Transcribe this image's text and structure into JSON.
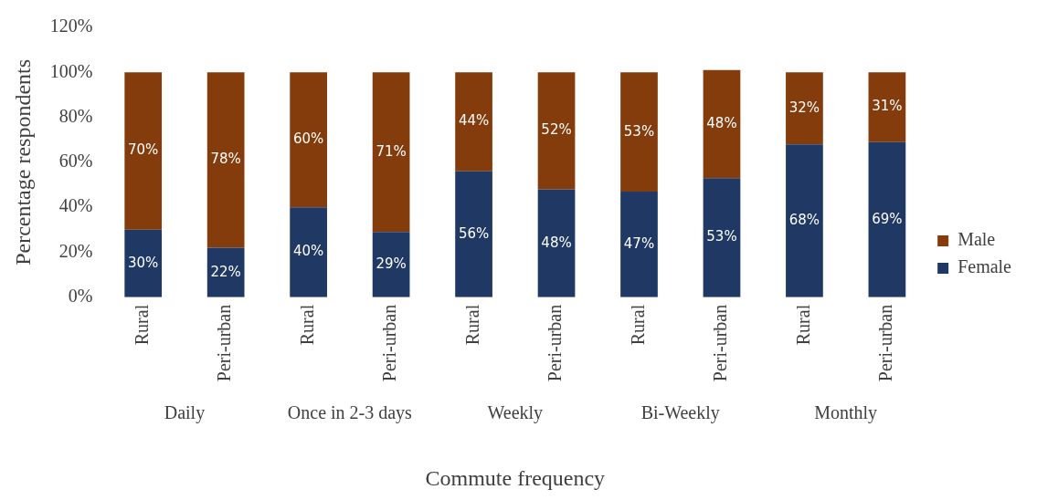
{
  "chart_data": {
    "type": "bar",
    "stacked": true,
    "xlabel": "Commute frequency",
    "ylabel": "Percentage respondents",
    "categories": [
      "Rural",
      "Peri-urban",
      "Rural",
      "Peri-urban",
      "Rural",
      "Peri-urban",
      "Rural",
      "Peri-urban",
      "Rural",
      "Peri-urban"
    ],
    "series": [
      {
        "name": "Female",
        "color": "#1f3864",
        "values": [
          30,
          22,
          40,
          29,
          56,
          48,
          47,
          53,
          68,
          69
        ],
        "value_labels": [
          "30%",
          "22%",
          "40%",
          "29%",
          "56%",
          "48%",
          "47%",
          "53%",
          "68%",
          "69%"
        ]
      },
      {
        "name": "Male",
        "color": "#843c0c",
        "values": [
          70,
          78,
          60,
          71,
          44,
          52,
          53,
          48,
          32,
          31
        ],
        "value_labels": [
          "70%",
          "78%",
          "60%",
          "71%",
          "44%",
          "52%",
          "53%",
          "48%",
          "32%",
          "31%"
        ]
      }
    ],
    "ylim": [
      0,
      120
    ],
    "yticks": [
      {
        "value": 0,
        "label": "0%"
      },
      {
        "value": 20,
        "label": "20%"
      },
      {
        "value": 40,
        "label": "40%"
      },
      {
        "value": 60,
        "label": "60%"
      },
      {
        "value": 80,
        "label": "80%"
      },
      {
        "value": 100,
        "label": "100%"
      },
      {
        "value": 120,
        "label": "120%"
      }
    ],
    "annotations": [
      "Daily",
      "Once in 2-3 days",
      "Weekly",
      "Bi-Weekly",
      "Monthly"
    ],
    "grid": false,
    "legend": "right"
  }
}
